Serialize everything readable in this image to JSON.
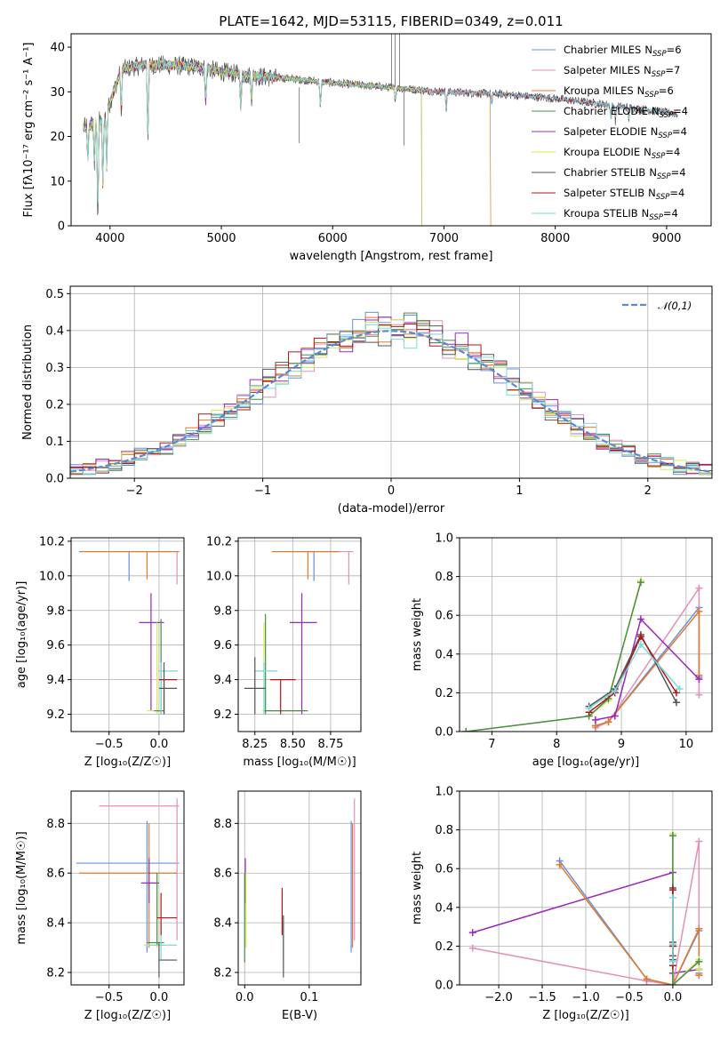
{
  "title": "PLATE=1642, MJD=53115, FIBERID=0349, z=0.011",
  "colors": {
    "Chabrier MILES": "#6a8fe0",
    "Salpeter MILES": "#e58fb7",
    "Kroupa MILES": "#e07b2a",
    "Chabrier ELODIE": "#4c8c4c",
    "Salpeter ELODIE": "#9a28b8",
    "Kroupa ELODIE": "#d6e85a",
    "Chabrier STELIB": "#555555",
    "Salpeter STELIB": "#b01818",
    "Kroupa STELIB": "#7ad9dc",
    "gauss": "#5a8ad6"
  },
  "legend": [
    {
      "name": "Chabrier MILES",
      "n": "6"
    },
    {
      "name": "Salpeter MILES",
      "n": "7"
    },
    {
      "name": "Kroupa MILES",
      "n": "6"
    },
    {
      "name": "Chabrier ELODIE",
      "n": "4"
    },
    {
      "name": "Salpeter ELODIE",
      "n": "4"
    },
    {
      "name": "Kroupa ELODIE",
      "n": "4"
    },
    {
      "name": "Chabrier STELIB",
      "n": "4"
    },
    {
      "name": "Salpeter STELIB",
      "n": "4"
    },
    {
      "name": "Kroupa STELIB",
      "n": "4"
    }
  ],
  "legend_prefix": "N",
  "legend_sub": "SSP",
  "chart_data": [
    {
      "type": "line",
      "id": "spectrum",
      "xlabel": "wavelength [Angstrom, rest frame]",
      "ylabel": "Flux [fλ10⁻¹⁷ erg cm⁻² s⁻¹ A⁻¹]",
      "xlim": [
        3650,
        9400
      ],
      "ylim": [
        0,
        43
      ],
      "xticks": [
        4000,
        5000,
        6000,
        7000,
        8000,
        9000
      ],
      "yticks": [
        0,
        10,
        20,
        30,
        40
      ],
      "data_range": [
        3760,
        9100
      ],
      "continuum_points": [
        [
          3760,
          22
        ],
        [
          3950,
          24
        ],
        [
          4100,
          35
        ],
        [
          4300,
          36
        ],
        [
          4500,
          36
        ],
        [
          4800,
          35.5
        ],
        [
          5000,
          34.5
        ],
        [
          5300,
          33.5
        ],
        [
          5600,
          33
        ],
        [
          6000,
          32
        ],
        [
          6500,
          31
        ],
        [
          7000,
          30
        ],
        [
          7500,
          29.5
        ],
        [
          8000,
          28.5
        ],
        [
          8500,
          27
        ],
        [
          8800,
          26
        ],
        [
          9100,
          25
        ]
      ],
      "dips": [
        [
          3800,
          14
        ],
        [
          3860,
          13
        ],
        [
          3890,
          0
        ],
        [
          3935,
          9
        ],
        [
          3970,
          13
        ],
        [
          4100,
          24
        ],
        [
          4340,
          19
        ],
        [
          4860,
          27
        ],
        [
          5175,
          26
        ],
        [
          5270,
          28
        ],
        [
          5890,
          26
        ],
        [
          6563,
          28
        ],
        [
          7020,
          26
        ],
        [
          7430,
          27
        ],
        [
          8500,
          24
        ],
        [
          8540,
          23.5
        ],
        [
          8660,
          24
        ]
      ]
    },
    {
      "type": "area",
      "id": "residuals",
      "xlabel": "(data-model)/error",
      "ylabel": "Normed distribution",
      "xlim": [
        -2.5,
        2.5
      ],
      "ylim": [
        0,
        0.52
      ],
      "xticks": [
        -2,
        -1,
        0,
        1,
        2
      ],
      "yticks": [
        0.0,
        0.1,
        0.2,
        0.3,
        0.4,
        0.5
      ],
      "gauss_label": "𝒩(0,1)",
      "bin_width": 0.1
    },
    {
      "type": "scatter",
      "id": "age_vs_Z",
      "xlabel": "Z [log₁₀(Z/Z☉)]",
      "ylabel": "age  [log₁₀(age/yr)]",
      "xlim": [
        -0.88,
        0.25
      ],
      "ylim": [
        9.1,
        10.22
      ],
      "xticks": [
        -0.5,
        0.0
      ],
      "yticks": [
        9.2,
        9.4,
        9.6,
        9.8,
        10.0,
        10.2
      ],
      "points": [
        {
          "s": "Chabrier MILES",
          "x": -0.3,
          "y": 10.14,
          "xe": [
            -0.8,
            0.2
          ],
          "ye": [
            9.97,
            10.14
          ]
        },
        {
          "s": "Salpeter MILES",
          "x": 0.18,
          "y": 10.14,
          "xe": [
            -0.3,
            0.2
          ],
          "ye": [
            9.95,
            10.14
          ]
        },
        {
          "s": "Kroupa MILES",
          "x": -0.12,
          "y": 10.14,
          "xe": [
            -0.78,
            0.2
          ],
          "ye": [
            9.98,
            10.14
          ]
        },
        {
          "s": "Salpeter ELODIE",
          "x": -0.08,
          "y": 9.73,
          "xe": [
            -0.2,
            0.05
          ],
          "ye": [
            9.22,
            9.9
          ]
        },
        {
          "s": "Kroupa ELODIE",
          "x": -0.02,
          "y": 9.22,
          "xe": [
            -0.12,
            0.06
          ],
          "ye": [
            9.2,
            9.73
          ]
        },
        {
          "s": "Chabrier ELODIE",
          "x": 0.02,
          "y": 9.22,
          "xe": [
            -0.05,
            0.05
          ],
          "ye": [
            9.2,
            9.75
          ]
        },
        {
          "s": "Kroupa STELIB",
          "x": 0.02,
          "y": 9.45,
          "xe": [
            0.0,
            0.19
          ],
          "ye": [
            9.2,
            9.5
          ]
        },
        {
          "s": "Salpeter STELIB",
          "x": 0.05,
          "y": 9.4,
          "xe": [
            0.0,
            0.18
          ],
          "ye": [
            9.2,
            9.4
          ]
        },
        {
          "s": "Chabrier STELIB",
          "x": 0.05,
          "y": 9.35,
          "xe": [
            0.0,
            0.18
          ],
          "ye": [
            9.2,
            9.5
          ]
        }
      ]
    },
    {
      "type": "scatter",
      "id": "age_vs_mass",
      "xlabel": "mass [log₁₀(M/M☉)]",
      "ylabel": "",
      "xlim": [
        8.14,
        8.95
      ],
      "ylim": [
        9.1,
        10.22
      ],
      "xticks": [
        8.25,
        8.5,
        8.75
      ],
      "yticks": [
        9.2,
        9.4,
        9.6,
        9.8,
        10.0,
        10.2
      ],
      "points": [
        {
          "s": "Chabrier MILES",
          "x": 8.64,
          "y": 10.14,
          "xe": [
            8.38,
            8.81
          ],
          "ye": [
            9.97,
            10.14
          ]
        },
        {
          "s": "Salpeter MILES",
          "x": 8.87,
          "y": 10.14,
          "xe": [
            8.6,
            8.9
          ],
          "ye": [
            9.95,
            10.14
          ]
        },
        {
          "s": "Kroupa MILES",
          "x": 8.6,
          "y": 10.14,
          "xe": [
            8.36,
            8.8
          ],
          "ye": [
            9.98,
            10.14
          ]
        },
        {
          "s": "Salpeter ELODIE",
          "x": 8.56,
          "y": 9.73,
          "xe": [
            8.48,
            8.66
          ],
          "ye": [
            9.2,
            9.9
          ]
        },
        {
          "s": "Kroupa ELODIE",
          "x": 8.31,
          "y": 9.22,
          "xe": [
            8.3,
            8.55
          ],
          "ye": [
            9.2,
            9.73
          ]
        },
        {
          "s": "Chabrier ELODIE",
          "x": 8.32,
          "y": 9.22,
          "xe": [
            8.31,
            8.6
          ],
          "ye": [
            9.2,
            9.78
          ]
        },
        {
          "s": "Kroupa STELIB",
          "x": 8.31,
          "y": 9.45,
          "xe": [
            8.25,
            8.4
          ],
          "ye": [
            9.2,
            9.5
          ]
        },
        {
          "s": "Salpeter STELIB",
          "x": 8.42,
          "y": 9.4,
          "xe": [
            8.35,
            8.52
          ],
          "ye": [
            9.2,
            9.4
          ]
        },
        {
          "s": "Chabrier STELIB",
          "x": 8.25,
          "y": 9.35,
          "xe": [
            8.18,
            8.32
          ],
          "ye": [
            9.2,
            9.53
          ]
        }
      ]
    },
    {
      "type": "line",
      "id": "massweight_vs_age",
      "xlabel": "age  [log₁₀(age/yr)]",
      "ylabel": "mass weight",
      "xlim": [
        6.5,
        10.4
      ],
      "ylim": [
        0,
        1.0
      ],
      "xticks": [
        7,
        8,
        9,
        10
      ],
      "yticks": [
        0.0,
        0.2,
        0.4,
        0.6,
        0.8,
        1.0
      ],
      "series": [
        {
          "s": "Kroupa ELODIE",
          "x": [
            6.6,
            8.5,
            8.8,
            9.3
          ],
          "y": [
            0.0,
            0.08,
            0.16,
            0.78
          ]
        },
        {
          "s": "Chabrier ELODIE",
          "x": [
            6.6,
            8.5,
            8.8,
            9.3
          ],
          "y": [
            0.0,
            0.08,
            0.17,
            0.77
          ]
        },
        {
          "s": "Chabrier MILES",
          "x": [
            8.6,
            8.8,
            10.2,
            10.2
          ],
          "y": [
            0.03,
            0.05,
            0.64,
            0.28
          ]
        },
        {
          "s": "Salpeter MILES",
          "x": [
            8.6,
            8.8,
            10.2,
            10.2
          ],
          "y": [
            0.02,
            0.05,
            0.74,
            0.19
          ]
        },
        {
          "s": "Kroupa MILES",
          "x": [
            8.6,
            8.8,
            10.2,
            10.2
          ],
          "y": [
            0.03,
            0.05,
            0.62,
            0.29
          ]
        },
        {
          "s": "Salpeter ELODIE",
          "x": [
            8.6,
            8.9,
            9.3,
            10.2
          ],
          "y": [
            0.06,
            0.08,
            0.58,
            0.27
          ]
        },
        {
          "s": "Chabrier STELIB",
          "x": [
            8.5,
            8.9,
            9.3,
            9.85
          ],
          "y": [
            0.13,
            0.22,
            0.5,
            0.15
          ]
        },
        {
          "s": "Salpeter STELIB",
          "x": [
            8.5,
            8.9,
            9.3,
            9.85
          ],
          "y": [
            0.1,
            0.2,
            0.49,
            0.2
          ]
        },
        {
          "s": "Kroupa STELIB",
          "x": [
            8.5,
            8.9,
            9.3,
            9.9
          ],
          "y": [
            0.12,
            0.21,
            0.45,
            0.22
          ]
        }
      ]
    },
    {
      "type": "scatter",
      "id": "mass_vs_Z",
      "xlabel": "Z [log₁₀(Z/Z☉)]",
      "ylabel": "mass [log₁₀(M/M☉)]",
      "xlim": [
        -0.88,
        0.25
      ],
      "ylim": [
        8.15,
        8.93
      ],
      "xticks": [
        -0.5,
        0.0
      ],
      "yticks": [
        8.2,
        8.4,
        8.6,
        8.8
      ],
      "points": [
        {
          "s": "Chabrier MILES",
          "x": -0.12,
          "y": 8.64,
          "xe": [
            -0.83,
            0.2
          ],
          "ye": [
            8.28,
            8.81
          ]
        },
        {
          "s": "Salpeter MILES",
          "x": 0.18,
          "y": 8.87,
          "xe": [
            -0.6,
            0.2
          ],
          "ye": [
            8.33,
            8.9
          ]
        },
        {
          "s": "Kroupa MILES",
          "x": -0.1,
          "y": 8.6,
          "xe": [
            -0.8,
            0.18
          ],
          "ye": [
            8.3,
            8.8
          ]
        },
        {
          "s": "Salpeter ELODIE",
          "x": -0.1,
          "y": 8.56,
          "xe": [
            -0.18,
            0.0
          ],
          "ye": [
            8.48,
            8.66
          ]
        },
        {
          "s": "Kroupa ELODIE",
          "x": -0.02,
          "y": 8.31,
          "xe": [
            -0.15,
            0.05
          ],
          "ye": [
            8.3,
            8.55
          ]
        },
        {
          "s": "Chabrier ELODIE",
          "x": -0.02,
          "y": 8.32,
          "xe": [
            -0.12,
            0.05
          ],
          "ye": [
            8.31,
            8.6
          ]
        },
        {
          "s": "Kroupa STELIB",
          "x": 0.02,
          "y": 8.31,
          "xe": [
            -0.1,
            0.18
          ],
          "ye": [
            8.25,
            8.4
          ]
        },
        {
          "s": "Salpeter STELIB",
          "x": 0.02,
          "y": 8.42,
          "xe": [
            -0.02,
            0.18
          ],
          "ye": [
            8.35,
            8.52
          ]
        },
        {
          "s": "Chabrier STELIB",
          "x": 0.0,
          "y": 8.25,
          "xe": [
            0.0,
            0.18
          ],
          "ye": [
            8.18,
            8.32
          ]
        }
      ]
    },
    {
      "type": "scatter",
      "id": "mass_vs_ebv",
      "xlabel": "E(B-V)",
      "ylabel": "",
      "xlim": [
        -0.01,
        0.18
      ],
      "ylim": [
        8.15,
        8.93
      ],
      "xticks": [
        0.0,
        0.1
      ],
      "yticks": [
        8.2,
        8.4,
        8.6,
        8.8
      ],
      "points": [
        {
          "s": "Chabrier MILES",
          "x": 0.165,
          "y": 8.64,
          "xe": [
            0.165,
            0.165
          ],
          "ye": [
            8.28,
            8.81
          ]
        },
        {
          "s": "Salpeter MILES",
          "x": 0.17,
          "y": 8.87,
          "xe": [
            0.17,
            0.17
          ],
          "ye": [
            8.33,
            8.9
          ]
        },
        {
          "s": "Kroupa MILES",
          "x": 0.167,
          "y": 8.6,
          "xe": [
            0.167,
            0.167
          ],
          "ye": [
            8.3,
            8.8
          ]
        },
        {
          "s": "Salpeter ELODIE",
          "x": 0.001,
          "y": 8.56,
          "xe": [
            0.001,
            0.001
          ],
          "ye": [
            8.48,
            8.66
          ]
        },
        {
          "s": "Kroupa ELODIE",
          "x": 0.002,
          "y": 8.31,
          "xe": [
            0.002,
            0.002
          ],
          "ye": [
            8.3,
            8.6
          ]
        },
        {
          "s": "Chabrier ELODIE",
          "x": 0.0,
          "y": 8.32,
          "xe": [
            0.0,
            0.0
          ],
          "ye": [
            8.24,
            8.6
          ]
        },
        {
          "s": "Kroupa STELIB",
          "x": 0.06,
          "y": 8.31,
          "xe": [
            0.06,
            0.06
          ],
          "ye": [
            8.25,
            8.4
          ]
        },
        {
          "s": "Salpeter STELIB",
          "x": 0.058,
          "y": 8.42,
          "xe": [
            0.058,
            0.058
          ],
          "ye": [
            8.35,
            8.54
          ]
        },
        {
          "s": "Chabrier STELIB",
          "x": 0.06,
          "y": 8.25,
          "xe": [
            0.06,
            0.06
          ],
          "ye": [
            8.18,
            8.43
          ]
        }
      ]
    },
    {
      "type": "line",
      "id": "massweight_vs_Z",
      "xlabel": "Z [log₁₀(Z/Z☉)]",
      "ylabel": "mass weight",
      "xlim": [
        -2.45,
        0.45
      ],
      "ylim": [
        0,
        1.0
      ],
      "xticks": [
        -2.0,
        -1.5,
        -1.0,
        -0.5,
        0.0
      ],
      "yticks": [
        0.0,
        0.2,
        0.4,
        0.6,
        0.8,
        1.0
      ],
      "series": [
        {
          "s": "Salpeter ELODIE",
          "x": [
            -2.3,
            0.0,
            0.0,
            0.3,
            0.3
          ],
          "y": [
            0.27,
            0.58,
            0.06,
            0.08,
            0.08
          ]
        },
        {
          "s": "Salpeter MILES",
          "x": [
            -2.3,
            -0.3,
            0.0,
            0.3,
            0.3
          ],
          "y": [
            0.19,
            0.02,
            0.0,
            0.74,
            0.05
          ]
        },
        {
          "s": "Chabrier MILES",
          "x": [
            -1.3,
            -0.3,
            0.0,
            0.3,
            0.3
          ],
          "y": [
            0.64,
            0.03,
            0.0,
            0.28,
            0.06
          ]
        },
        {
          "s": "Kroupa MILES",
          "x": [
            -1.3,
            -0.3,
            0.0,
            0.3,
            0.3
          ],
          "y": [
            0.62,
            0.03,
            0.0,
            0.29,
            0.05
          ]
        },
        {
          "s": "Kroupa ELODIE",
          "x": [
            0.0,
            0.0,
            0.3,
            0.3
          ],
          "y": [
            0.78,
            0.0,
            0.13,
            0.08
          ]
        },
        {
          "s": "Chabrier ELODIE",
          "x": [
            0.0,
            0.0,
            0.3
          ],
          "y": [
            0.77,
            0.0,
            0.12
          ]
        },
        {
          "s": "Chabrier STELIB",
          "x": [
            0.0,
            0.0,
            0.0,
            0.0
          ],
          "y": [
            0.5,
            0.22,
            0.13,
            0.15
          ]
        },
        {
          "s": "Salpeter STELIB",
          "x": [
            0.0,
            0.0,
            0.0,
            0.0
          ],
          "y": [
            0.49,
            0.2,
            0.1,
            0.2
          ]
        },
        {
          "s": "Kroupa STELIB",
          "x": [
            0.0,
            0.0,
            0.0
          ],
          "y": [
            0.45,
            0.21,
            0.12
          ]
        }
      ]
    }
  ]
}
